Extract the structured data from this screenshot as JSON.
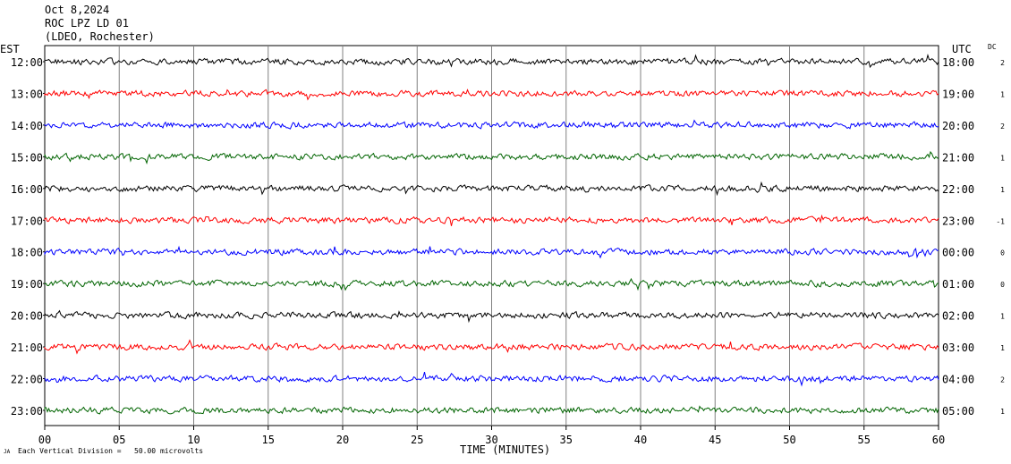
{
  "header": {
    "date": "Oct 8,2024",
    "station": "ROC LPZ LD 01",
    "network": "(LDEO, Rochester)"
  },
  "axis": {
    "left_title": "EST",
    "right_title": "UTC",
    "dc_title": "DC",
    "x_title": "TIME (MINUTES)",
    "footnote": "Each Vertical Division =   50.00 microvolts",
    "corner_mark": "JA"
  },
  "chart_data": {
    "type": "line",
    "xlabel": "TIME (MINUTES)",
    "xlim": [
      0,
      60
    ],
    "x_ticks": [
      "00",
      "05",
      "10",
      "15",
      "20",
      "25",
      "30",
      "35",
      "40",
      "45",
      "50",
      "55",
      "60"
    ],
    "colors": [
      "#000000",
      "#ff0000",
      "#0000ff",
      "#006400"
    ],
    "rows": [
      {
        "est": "12:00",
        "utc": "18:00",
        "dc": "2",
        "color": "#000000"
      },
      {
        "est": "13:00",
        "utc": "19:00",
        "dc": "1",
        "color": "#ff0000"
      },
      {
        "est": "14:00",
        "utc": "20:00",
        "dc": "2",
        "color": "#0000ff"
      },
      {
        "est": "15:00",
        "utc": "21:00",
        "dc": "1",
        "color": "#006400"
      },
      {
        "est": "16:00",
        "utc": "22:00",
        "dc": "1",
        "color": "#000000"
      },
      {
        "est": "17:00",
        "utc": "23:00",
        "dc": "-1",
        "color": "#ff0000"
      },
      {
        "est": "18:00",
        "utc": "00:00",
        "dc": "0",
        "color": "#0000ff"
      },
      {
        "est": "19:00",
        "utc": "01:00",
        "dc": "0",
        "color": "#006400"
      },
      {
        "est": "20:00",
        "utc": "02:00",
        "dc": "1",
        "color": "#000000"
      },
      {
        "est": "21:00",
        "utc": "03:00",
        "dc": "1",
        "color": "#ff0000"
      },
      {
        "est": "22:00",
        "utc": "04:00",
        "dc": "2",
        "color": "#0000ff"
      },
      {
        "est": "23:00",
        "utc": "05:00",
        "dc": "1",
        "color": "#006400"
      }
    ]
  }
}
